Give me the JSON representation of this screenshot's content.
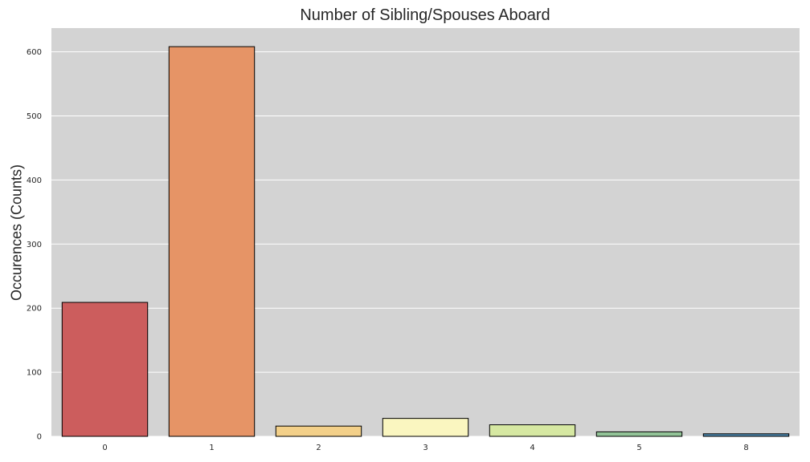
{
  "chart_data": {
    "type": "bar",
    "title": "Number of Sibling/Spouses Aboard",
    "xlabel": "",
    "ylabel": "Occurences (Counts)",
    "categories": [
      "0",
      "1",
      "2",
      "3",
      "4",
      "5",
      "8"
    ],
    "values": [
      209,
      608,
      16,
      28,
      18,
      7,
      4
    ],
    "ylim": [
      0,
      637
    ],
    "yticks": [
      0,
      100,
      200,
      300,
      400,
      500,
      600
    ],
    "grid": true,
    "legend": "none",
    "background": "#d3d3d3",
    "bar_colors": [
      "#cc5d5d",
      "#e69466",
      "#f3d089",
      "#faf6c0",
      "#d6e8a2",
      "#92c397",
      "#4d86aa"
    ],
    "edge_color": "#000000"
  }
}
